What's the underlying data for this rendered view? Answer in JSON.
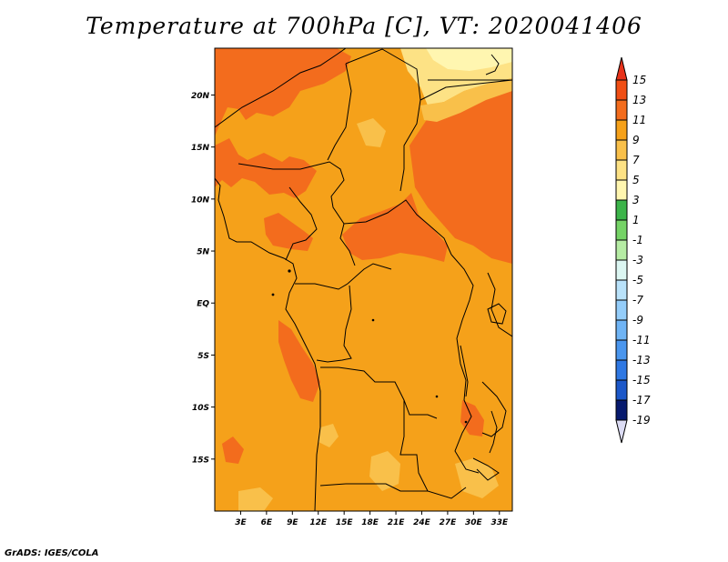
{
  "title": "Temperature at 700hPa [C], VT: 2020041406",
  "credit": "GrADS: IGES/COLA",
  "map": {
    "variable": "Temperature at 700hPa",
    "units": "C",
    "valid_time": "2020041406",
    "lon_range": [
      0,
      34.5
    ],
    "lat_range": [
      -20,
      24.5
    ],
    "lat_ticks": [
      {
        "value": 20,
        "label": "20N"
      },
      {
        "value": 15,
        "label": "15N"
      },
      {
        "value": 10,
        "label": "10N"
      },
      {
        "value": 5,
        "label": "5N"
      },
      {
        "value": 0,
        "label": "EQ"
      },
      {
        "value": -5,
        "label": "5S"
      },
      {
        "value": -10,
        "label": "10S"
      },
      {
        "value": -15,
        "label": "15S"
      }
    ],
    "lon_ticks": [
      {
        "value": 3,
        "label": "3E"
      },
      {
        "value": 6,
        "label": "6E"
      },
      {
        "value": 9,
        "label": "9E"
      },
      {
        "value": 12,
        "label": "12E"
      },
      {
        "value": 15,
        "label": "15E"
      },
      {
        "value": 18,
        "label": "18E"
      },
      {
        "value": 21,
        "label": "21E"
      },
      {
        "value": 24,
        "label": "24E"
      },
      {
        "value": 27,
        "label": "27E"
      },
      {
        "value": 30,
        "label": "30E"
      },
      {
        "value": 33,
        "label": "33E"
      }
    ],
    "background_color": "#f5a11a"
  },
  "colorbar": {
    "levels": [
      {
        "label": "15",
        "color": "#e8321a"
      },
      {
        "label": "13",
        "color": "#f04e14"
      },
      {
        "label": "11",
        "color": "#f36c1d"
      },
      {
        "label": "9",
        "color": "#f5a11a"
      },
      {
        "label": "7",
        "color": "#f9c04a"
      },
      {
        "label": "5",
        "color": "#fde285"
      },
      {
        "label": "3",
        "color": "#fff6b0"
      },
      {
        "label": "1",
        "color": "#3cb44a"
      },
      {
        "label": "-1",
        "color": "#75d366"
      },
      {
        "label": "-3",
        "color": "#b6eca4"
      },
      {
        "label": "-5",
        "color": "#dcf6f2"
      },
      {
        "label": "-7",
        "color": "#b9e2fa"
      },
      {
        "label": "-9",
        "color": "#94cdfa"
      },
      {
        "label": "-11",
        "color": "#6fb4f5"
      },
      {
        "label": "-13",
        "color": "#4a96ee"
      },
      {
        "label": "-15",
        "color": "#2f78e3"
      },
      {
        "label": "-17",
        "color": "#1c58c9"
      },
      {
        "label": "-19",
        "color": "#0d36a8"
      }
    ],
    "top_arrow_color": "#e8321a",
    "bottom_arrow_color": "#dcdcf4",
    "bottom_level_color": "#071a6e"
  }
}
